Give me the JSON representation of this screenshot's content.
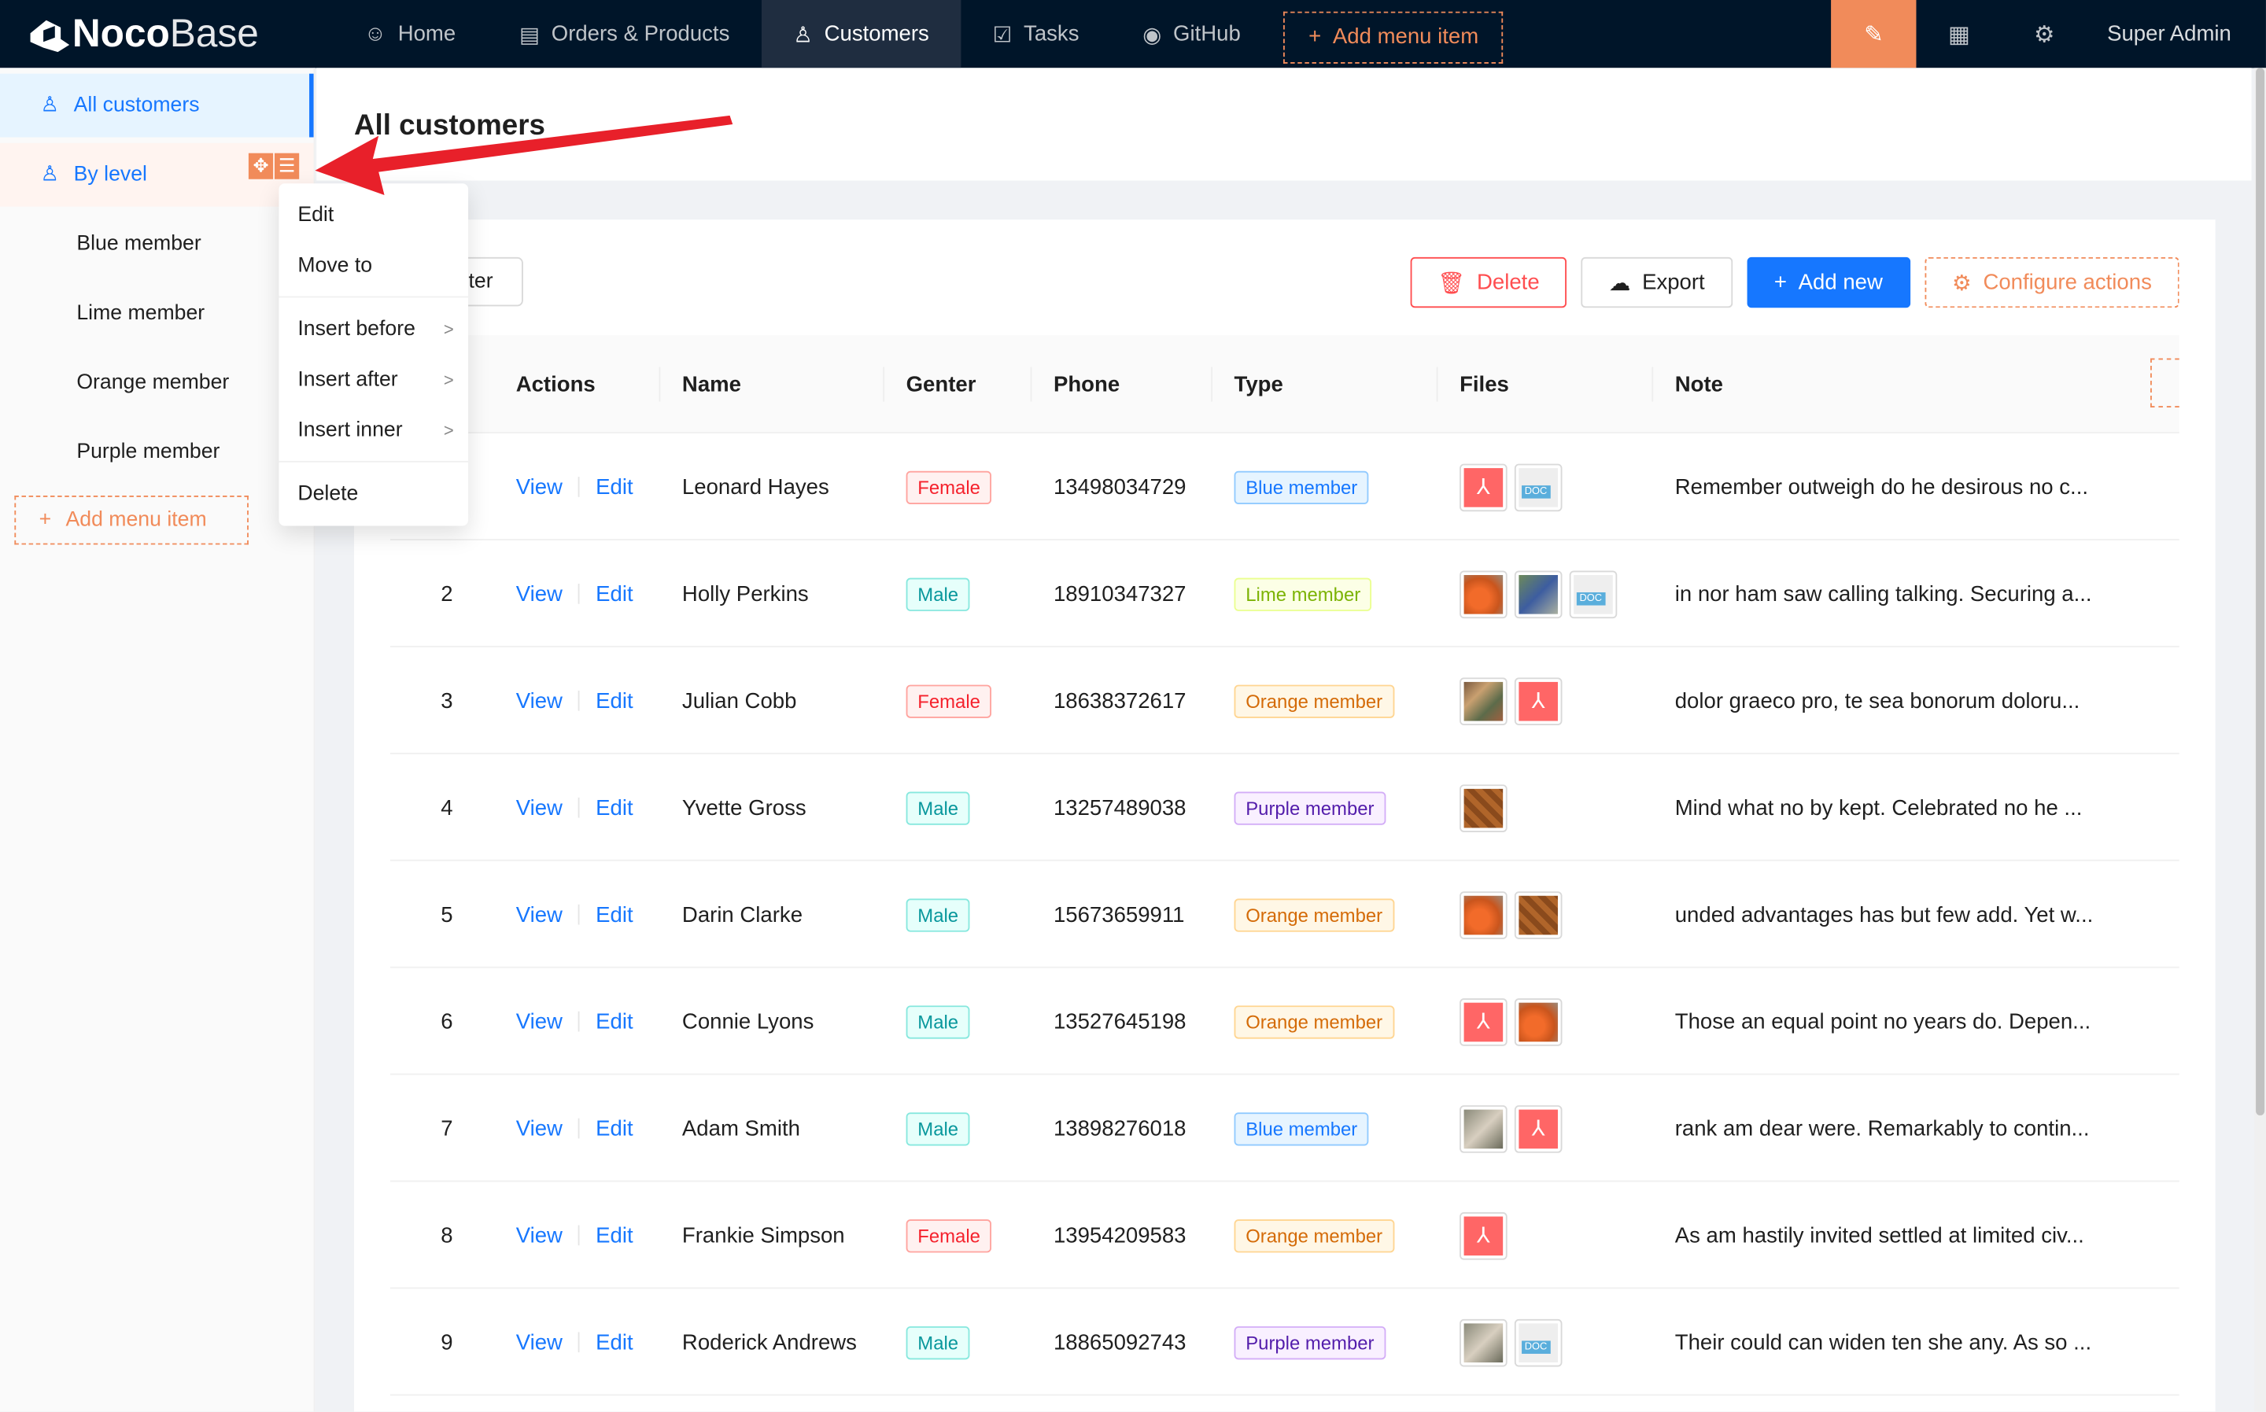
{
  "header": {
    "logo": {
      "bold": "Noco",
      "light": "Base"
    },
    "nav": [
      {
        "label": "Home",
        "icon": "smile-icon"
      },
      {
        "label": "Orders & Products",
        "icon": "file-check-icon"
      },
      {
        "label": "Customers",
        "icon": "user-icon",
        "active": true
      },
      {
        "label": "Tasks",
        "icon": "checkbox-icon"
      },
      {
        "label": "GitHub",
        "icon": "github-icon"
      }
    ],
    "add_menu_item": "Add menu item",
    "user": "Super Admin"
  },
  "sidebar": {
    "items": [
      {
        "label": "All customers",
        "selected": true
      },
      {
        "label": "By level"
      },
      {
        "label": "Blue member"
      },
      {
        "label": "Lime member"
      },
      {
        "label": "Orange member"
      },
      {
        "label": "Purple member"
      }
    ],
    "add_menu_item": "Add menu item"
  },
  "context_menu": {
    "items": [
      "Edit",
      "Move to",
      "Insert before",
      "Insert after",
      "Insert inner",
      "Delete"
    ]
  },
  "page": {
    "title": "All customers"
  },
  "toolbar": {
    "filter_partial": "lter",
    "delete": "Delete",
    "export": "Export",
    "add_new": "Add new",
    "configure_actions": "Configure actions"
  },
  "table": {
    "columns": [
      "Actions",
      "Name",
      "Genter",
      "Phone",
      "Type",
      "Files",
      "Note"
    ],
    "view_label": "View",
    "edit_label": "Edit",
    "rows": [
      {
        "no": "",
        "name": "Leonard Hayes",
        "gender": "Female",
        "phone": "13498034729",
        "type": "Blue member",
        "files": [
          "pdf",
          "doc"
        ],
        "note": "Remember outweigh do he desirous no c..."
      },
      {
        "no": "2",
        "name": "Holly Perkins",
        "gender": "Male",
        "phone": "18910347327",
        "type": "Lime member",
        "files": [
          "img-orange",
          "img-grapes",
          "doc"
        ],
        "note": "in nor ham saw calling talking. Securing a..."
      },
      {
        "no": "3",
        "name": "Julian Cobb",
        "gender": "Female",
        "phone": "18638372617",
        "type": "Orange member",
        "files": [
          "img-food",
          "pdf"
        ],
        "note": "dolor graeco pro, te sea bonorum doloru..."
      },
      {
        "no": "4",
        "name": "Yvette Gross",
        "gender": "Male",
        "phone": "13257489038",
        "type": "Purple member",
        "files": [
          "img-brown"
        ],
        "note": "Mind what no by kept. Celebrated no he ..."
      },
      {
        "no": "5",
        "name": "Darin Clarke",
        "gender": "Male",
        "phone": "15673659911",
        "type": "Orange member",
        "files": [
          "img-orange",
          "img-brown"
        ],
        "note": "unded advantages has but few add. Yet w..."
      },
      {
        "no": "6",
        "name": "Connie Lyons",
        "gender": "Male",
        "phone": "13527645198",
        "type": "Orange member",
        "files": [
          "pdf",
          "img-orange"
        ],
        "note": "Those an equal point no years do. Depen..."
      },
      {
        "no": "7",
        "name": "Adam Smith",
        "gender": "Male",
        "phone": "13898276018",
        "type": "Blue member",
        "files": [
          "img-grey",
          "pdf"
        ],
        "note": "rank am dear were. Remarkably to contin..."
      },
      {
        "no": "8",
        "name": "Frankie Simpson",
        "gender": "Female",
        "phone": "13954209583",
        "type": "Orange member",
        "files": [
          "pdf"
        ],
        "note": "As am hastily invited settled at limited civ..."
      },
      {
        "no": "9",
        "name": "Roderick Andrews",
        "gender": "Male",
        "phone": "18865092743",
        "type": "Purple member",
        "files": [
          "img-grey",
          "doc"
        ],
        "note": "Their could can widen ten she any. As so ..."
      }
    ]
  },
  "tag_colors": {
    "Female": {
      "fg": "#f5222d",
      "bg": "#fff1f0",
      "border": "#ffa39e"
    },
    "Male": {
      "fg": "#08979c",
      "bg": "#e6fffb",
      "border": "#87e8de"
    },
    "Blue member": {
      "fg": "#1677ff",
      "bg": "#e6f4ff",
      "border": "#91caff"
    },
    "Lime member": {
      "fg": "#7cb305",
      "bg": "#fcffe6",
      "border": "#eaff8f"
    },
    "Orange member": {
      "fg": "#d46b08",
      "bg": "#fff7e6",
      "border": "#ffd591"
    },
    "Purple member": {
      "fg": "#531dab",
      "bg": "#f9f0ff",
      "border": "#d3adf7"
    }
  },
  "colors": {
    "accent": "#1677ff",
    "config": "#f18b5a",
    "danger": "#ff4d4f",
    "header_bg": "#001529",
    "annotation_arrow": "#e8202a"
  }
}
